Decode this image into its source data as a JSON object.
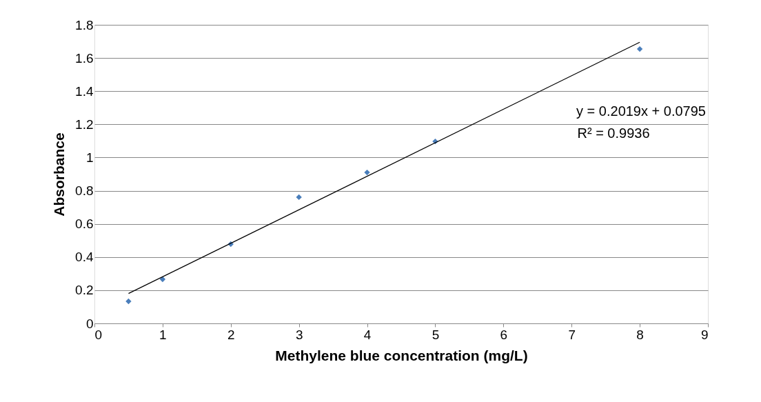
{
  "chart_data": {
    "type": "scatter",
    "xlabel": "Methylene blue concentration (mg/L)",
    "ylabel": "Absorbance",
    "series": [
      {
        "color": "#4a7ebb",
        "marker": "diamond",
        "x": [
          0.5,
          1,
          2,
          3,
          4,
          5,
          8
        ],
        "values": [
          0.133,
          0.266,
          0.478,
          0.761,
          0.91,
          1.097,
          1.654
        ]
      },
      {
        "type": "line",
        "color": "#000000",
        "marker": "none",
        "line_style": "solid",
        "x": [
          0.5,
          8
        ],
        "values": [
          0.18,
          1.695
        ]
      }
    ],
    "annotations": [
      "y = 0.2019x + 0.0795",
      "R² = 0.9936"
    ],
    "xlim": [
      0,
      9
    ],
    "xticks": [
      0,
      1,
      2,
      3,
      4,
      5,
      6,
      7,
      8,
      9
    ],
    "ylim": [
      0,
      1.8
    ],
    "yticks": [
      0,
      0.2,
      0.4,
      0.6,
      0.8,
      1,
      1.2,
      1.4,
      1.6,
      1.8
    ],
    "grid": "y"
  }
}
